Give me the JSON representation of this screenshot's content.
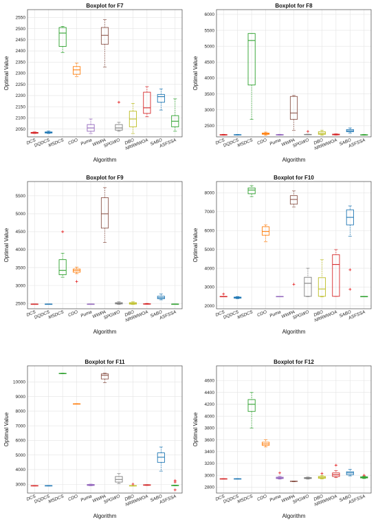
{
  "xlabel": "Algorithm",
  "ylabel": "Optimal Value",
  "algorithms": [
    "DCS",
    "DQDCS",
    "MSDCS",
    "CDO",
    "Puma",
    "WWPA",
    "SPGWO",
    "DBO",
    "NRRMWOA",
    "SABO",
    "ASFSSA"
  ],
  "colors": {
    "DCS": "#d62728",
    "DQDCS": "#1f77b4",
    "MSDCS": "#2ca02c",
    "CDO": "#ff7f0e",
    "Puma": "#9467bd",
    "WWPA": "#8c564b",
    "SPGWO": "#7f7f7f",
    "DBO": "#bcbd22",
    "NRRMWOA": "#d62728",
    "SABO": "#1f77b4",
    "ASFSSA": "#2ca02c"
  },
  "chart_data": [
    {
      "type": "boxplot",
      "title": "Boxplot for F7",
      "xlabel": "Algorithm",
      "ylabel": "Optimal Value",
      "ylim": [
        2015,
        2585
      ],
      "yticks": [
        2050,
        2100,
        2150,
        2200,
        2250,
        2300,
        2350,
        2400,
        2450,
        2500,
        2550
      ],
      "categories": [
        "DCS",
        "DQDCS",
        "MSDCS",
        "CDO",
        "Puma",
        "WWPA",
        "SPGWO",
        "DBO",
        "NRRMWOA",
        "SABO",
        "ASFSSA"
      ],
      "boxes": [
        {
          "min": 2030,
          "q1": 2031,
          "median": 2033,
          "q3": 2035,
          "max": 2037,
          "outliers": []
        },
        {
          "min": 2030,
          "q1": 2032,
          "median": 2035,
          "q3": 2037,
          "max": 2041,
          "outliers": []
        },
        {
          "min": 2393,
          "q1": 2420,
          "median": 2480,
          "q3": 2505,
          "max": 2510,
          "outliers": []
        },
        {
          "min": 2285,
          "q1": 2295,
          "median": 2315,
          "q3": 2330,
          "max": 2345,
          "outliers": []
        },
        {
          "min": 2030,
          "q1": 2040,
          "median": 2055,
          "q3": 2070,
          "max": 2095,
          "outliers": []
        },
        {
          "min": 2328,
          "q1": 2430,
          "median": 2470,
          "q3": 2505,
          "max": 2540,
          "outliers": []
        },
        {
          "min": 2040,
          "q1": 2045,
          "median": 2055,
          "q3": 2070,
          "max": 2080,
          "outliers": [
            2170
          ]
        },
        {
          "min": 2030,
          "q1": 2060,
          "median": 2095,
          "q3": 2130,
          "max": 2165,
          "outliers": []
        },
        {
          "min": 2105,
          "q1": 2120,
          "median": 2145,
          "q3": 2215,
          "max": 2240,
          "outliers": []
        },
        {
          "min": 2135,
          "q1": 2170,
          "median": 2195,
          "q3": 2205,
          "max": 2230,
          "outliers": []
        },
        {
          "min": 2040,
          "q1": 2060,
          "median": 2085,
          "q3": 2110,
          "max": 2185,
          "outliers": []
        }
      ]
    },
    {
      "type": "boxplot",
      "title": "Boxplot for F8",
      "xlabel": "Algorithm",
      "ylabel": "Optimal Value",
      "ylim": [
        2150,
        6150
      ],
      "yticks": [
        2500,
        3000,
        3500,
        4000,
        4500,
        5000,
        5500,
        6000
      ],
      "categories": [
        "DCS",
        "DQDCS",
        "MSDCS",
        "CDO",
        "Puma",
        "WWPA",
        "SPGWO",
        "DBO",
        "NRRMWOA",
        "SABO",
        "ASFSSA"
      ],
      "boxes": [
        {
          "min": 2200,
          "q1": 2205,
          "median": 2215,
          "q3": 2222,
          "max": 2230,
          "outliers": []
        },
        {
          "min": 2205,
          "q1": 2210,
          "median": 2215,
          "q3": 2220,
          "max": 2225,
          "outliers": []
        },
        {
          "min": 2700,
          "q1": 3780,
          "median": 5180,
          "q3": 5400,
          "max": 5400,
          "outliers": []
        },
        {
          "min": 2200,
          "q1": 2230,
          "median": 2250,
          "q3": 2270,
          "max": 2300,
          "outliers": []
        },
        {
          "min": 2200,
          "q1": 2205,
          "median": 2215,
          "q3": 2222,
          "max": 2230,
          "outliers": []
        },
        {
          "min": 2350,
          "q1": 2700,
          "median": 2900,
          "q3": 3420,
          "max": 3450,
          "outliers": []
        },
        {
          "min": 2215,
          "q1": 2218,
          "median": 2222,
          "q3": 2228,
          "max": 2235,
          "outliers": [
            2320
          ]
        },
        {
          "min": 2200,
          "q1": 2230,
          "median": 2260,
          "q3": 2310,
          "max": 2360,
          "outliers": []
        },
        {
          "min": 2205,
          "q1": 2212,
          "median": 2222,
          "q3": 2235,
          "max": 2245,
          "outliers": []
        },
        {
          "min": 2270,
          "q1": 2310,
          "median": 2340,
          "q3": 2380,
          "max": 2430,
          "outliers": []
        },
        {
          "min": 2200,
          "q1": 2205,
          "median": 2212,
          "q3": 2218,
          "max": 2225,
          "outliers": []
        }
      ]
    },
    {
      "type": "boxplot",
      "title": "Boxplot for F9",
      "xlabel": "Algorithm",
      "ylabel": "Optimal Value",
      "ylim": [
        2350,
        5900
      ],
      "yticks": [
        2500,
        3000,
        3500,
        4000,
        4500,
        5000,
        5500
      ],
      "categories": [
        "DCS",
        "DQDCS",
        "MSDCS",
        "CDO",
        "Puma",
        "WWPA",
        "SPGWO",
        "DBO",
        "NRRMWOA",
        "SABO",
        "ASFSSA"
      ],
      "boxes": [
        {
          "min": 2475,
          "q1": 2478,
          "median": 2480,
          "q3": 2482,
          "max": 2485,
          "outliers": []
        },
        {
          "min": 2475,
          "q1": 2478,
          "median": 2480,
          "q3": 2482,
          "max": 2485,
          "outliers": []
        },
        {
          "min": 3230,
          "q1": 3300,
          "median": 3420,
          "q3": 3720,
          "max": 3900,
          "outliers": [
            4500
          ]
        },
        {
          "min": 3330,
          "q1": 3370,
          "median": 3420,
          "q3": 3460,
          "max": 3510,
          "outliers": [
            3110
          ]
        },
        {
          "min": 2475,
          "q1": 2478,
          "median": 2480,
          "q3": 2482,
          "max": 2485,
          "outliers": []
        },
        {
          "min": 4200,
          "q1": 4600,
          "median": 5000,
          "q3": 5450,
          "max": 5730,
          "outliers": []
        },
        {
          "min": 2470,
          "q1": 2485,
          "median": 2500,
          "q3": 2520,
          "max": 2545,
          "outliers": []
        },
        {
          "min": 2470,
          "q1": 2480,
          "median": 2500,
          "q3": 2520,
          "max": 2545,
          "outliers": []
        },
        {
          "min": 2475,
          "q1": 2478,
          "median": 2482,
          "q3": 2490,
          "max": 2500,
          "outliers": []
        },
        {
          "min": 2600,
          "q1": 2630,
          "median": 2660,
          "q3": 2700,
          "max": 2760,
          "outliers": []
        },
        {
          "min": 2475,
          "q1": 2478,
          "median": 2480,
          "q3": 2482,
          "max": 2485,
          "outliers": []
        }
      ]
    },
    {
      "type": "boxplot",
      "title": "Boxplot for F10",
      "xlabel": "Algorithm",
      "ylabel": "Optimal Value",
      "ylim": [
        1850,
        8600
      ],
      "yticks": [
        2000,
        3000,
        4000,
        5000,
        6000,
        7000,
        8000
      ],
      "categories": [
        "DCS",
        "DQDCS",
        "MSDCS",
        "CDO",
        "Puma",
        "WWPA",
        "SPGWO",
        "DBO",
        "NRRMWOA",
        "SABO",
        "ASFSSA"
      ],
      "boxes": [
        {
          "min": 2490,
          "q1": 2495,
          "median": 2500,
          "q3": 2505,
          "max": 2510,
          "outliers": [
            2630
          ]
        },
        {
          "min": 2380,
          "q1": 2410,
          "median": 2440,
          "q3": 2470,
          "max": 2500,
          "outliers": []
        },
        {
          "min": 7800,
          "q1": 7950,
          "median": 8150,
          "q3": 8260,
          "max": 8380,
          "outliers": []
        },
        {
          "min": 5400,
          "q1": 5750,
          "median": 5950,
          "q3": 6200,
          "max": 6300,
          "outliers": []
        },
        {
          "min": 2490,
          "q1": 2495,
          "median": 2500,
          "q3": 2505,
          "max": 2510,
          "outliers": []
        },
        {
          "min": 7250,
          "q1": 7400,
          "median": 7650,
          "q3": 7850,
          "max": 8100,
          "outliers": [
            3150
          ]
        },
        {
          "min": 2490,
          "q1": 2510,
          "median": 3200,
          "q3": 3520,
          "max": 4000,
          "outliers": []
        },
        {
          "min": 2480,
          "q1": 2510,
          "median": 2900,
          "q3": 3500,
          "max": 4450,
          "outliers": []
        },
        {
          "min": 2500,
          "q1": 2510,
          "median": 4200,
          "q3": 4720,
          "max": 4990,
          "outliers": []
        },
        {
          "min": 5700,
          "q1": 6300,
          "median": 6700,
          "q3": 7100,
          "max": 7300,
          "outliers": [
            3920,
            2880
          ]
        },
        {
          "min": 2490,
          "q1": 2495,
          "median": 2500,
          "q3": 2505,
          "max": 2510,
          "outliers": []
        }
      ]
    },
    {
      "type": "boxplot",
      "title": "Boxplot for F11",
      "xlabel": "Algorithm",
      "ylabel": "Optimal Value",
      "ylim": [
        2400,
        11100
      ],
      "yticks": [
        3000,
        4000,
        5000,
        6000,
        7000,
        8000,
        9000,
        10000
      ],
      "categories": [
        "DCS",
        "DQDCS",
        "MSDCS",
        "CDO",
        "Puma",
        "WWPA",
        "SPGWO",
        "DBO",
        "NRRMWOA",
        "SABO",
        "ASFSSA"
      ],
      "boxes": [
        {
          "min": 2880,
          "q1": 2890,
          "median": 2900,
          "q3": 2910,
          "max": 2920,
          "outliers": []
        },
        {
          "min": 2880,
          "q1": 2890,
          "median": 2900,
          "q3": 2910,
          "max": 2920,
          "outliers": []
        },
        {
          "min": 10560,
          "q1": 10570,
          "median": 10580,
          "q3": 10590,
          "max": 10600,
          "outliers": []
        },
        {
          "min": 8480,
          "q1": 8495,
          "median": 8500,
          "q3": 8505,
          "max": 8520,
          "outliers": []
        },
        {
          "min": 2900,
          "q1": 2920,
          "median": 2950,
          "q3": 2990,
          "max": 3010,
          "outliers": []
        },
        {
          "min": 9950,
          "q1": 10200,
          "median": 10450,
          "q3": 10550,
          "max": 10600,
          "outliers": []
        },
        {
          "min": 3050,
          "q1": 3150,
          "median": 3330,
          "q3": 3530,
          "max": 3730,
          "outliers": []
        },
        {
          "min": 2880,
          "q1": 2890,
          "median": 2900,
          "q3": 2910,
          "max": 2920,
          "outliers": [
            3010
          ]
        },
        {
          "min": 2920,
          "q1": 2930,
          "median": 2950,
          "q3": 2965,
          "max": 2980,
          "outliers": []
        },
        {
          "min": 3900,
          "q1": 4500,
          "median": 4850,
          "q3": 5150,
          "max": 5550,
          "outliers": []
        },
        {
          "min": 2900,
          "q1": 2910,
          "median": 2920,
          "q3": 2930,
          "max": 2940,
          "outliers": [
            3250,
            3150,
            2620
          ]
        }
      ]
    },
    {
      "type": "boxplot",
      "title": "Boxplot for F12",
      "xlabel": "Algorithm",
      "ylabel": "Optimal Value",
      "ylim": [
        2700,
        4850
      ],
      "yticks": [
        2800,
        3000,
        3200,
        3400,
        3600,
        3800,
        4000,
        4200,
        4400,
        4600
      ],
      "categories": [
        "DCS",
        "DQDCS",
        "MSDCS",
        "CDO",
        "Puma",
        "WWPA",
        "SPGWO",
        "DBO",
        "NRRMWOA",
        "SABO",
        "ASFSSA"
      ],
      "boxes": [
        {
          "min": 2935,
          "q1": 2938,
          "median": 2940,
          "q3": 2942,
          "max": 2945,
          "outliers": []
        },
        {
          "min": 2935,
          "q1": 2938,
          "median": 2940,
          "q3": 2942,
          "max": 2945,
          "outliers": []
        },
        {
          "min": 3800,
          "q1": 4080,
          "median": 4200,
          "q3": 4280,
          "max": 4400,
          "outliers": []
        },
        {
          "min": 3480,
          "q1": 3505,
          "median": 3530,
          "q3": 3560,
          "max": 3600,
          "outliers": []
        },
        {
          "min": 2935,
          "q1": 2945,
          "median": 2955,
          "q3": 2968,
          "max": 2980,
          "outliers": [
            3040
          ]
        },
        {
          "min": 2890,
          "q1": 2895,
          "median": 2898,
          "q3": 2902,
          "max": 2905,
          "outliers": []
        },
        {
          "min": 2935,
          "q1": 2945,
          "median": 2952,
          "q3": 2962,
          "max": 2970,
          "outliers": []
        },
        {
          "min": 2940,
          "q1": 2950,
          "median": 2965,
          "q3": 2980,
          "max": 3000,
          "outliers": [
            3030
          ]
        },
        {
          "min": 2960,
          "q1": 2980,
          "median": 3010,
          "q3": 3040,
          "max": 3080,
          "outliers": [
            3170
          ]
        },
        {
          "min": 2990,
          "q1": 3010,
          "median": 3040,
          "q3": 3060,
          "max": 3100,
          "outliers": []
        },
        {
          "min": 2945,
          "q1": 2955,
          "median": 2965,
          "q3": 2975,
          "max": 2985,
          "outliers": [
            3000
          ]
        }
      ]
    }
  ]
}
